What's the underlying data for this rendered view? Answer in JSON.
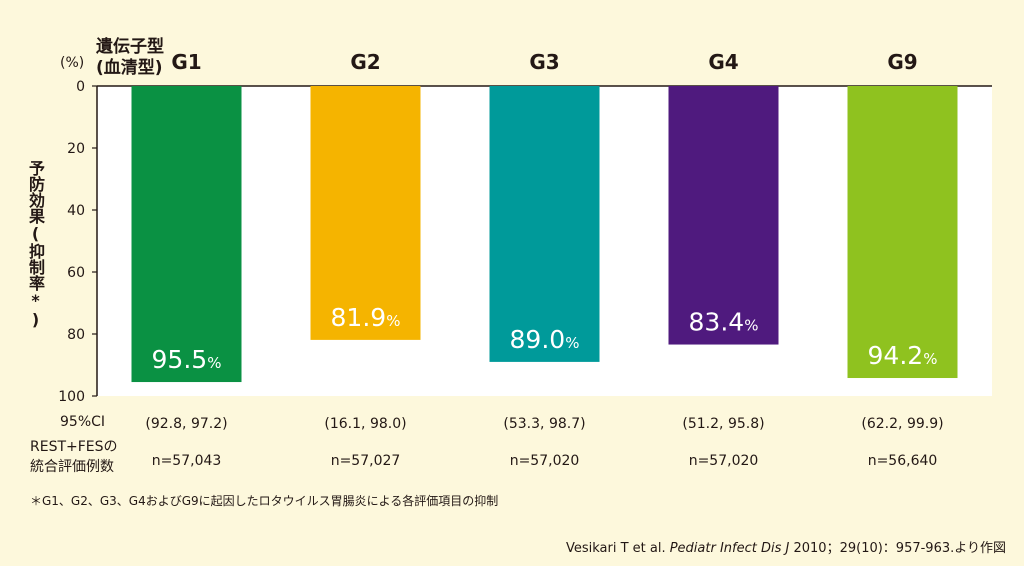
{
  "chart_data": {
    "type": "bar",
    "title": "",
    "unit_label": "(%)",
    "x_header": [
      "遺伝子型",
      "(血清型)"
    ],
    "ylabel": "予防効果(抑制率*)",
    "ylim": [
      0,
      100
    ],
    "y_ticks": [
      0,
      20,
      40,
      60,
      80,
      100
    ],
    "y_axis_inverted": true,
    "grid": false,
    "categories": [
      "G1",
      "G2",
      "G3",
      "G4",
      "G9"
    ],
    "values": [
      95.5,
      81.9,
      89.0,
      83.4,
      94.2
    ],
    "value_labels": [
      "95.5",
      "81.9",
      "89.0",
      "83.4",
      "94.2"
    ],
    "value_suffix": "%",
    "colors": [
      "#0a9143",
      "#f5b400",
      "#009a9a",
      "#4f1a7e",
      "#8fc21f"
    ],
    "plot_background": "#ffffff",
    "ci_label": "95%CI",
    "ci": [
      "(92.8, 97.2)",
      "(16.1, 98.0)",
      "(53.3, 98.7)",
      "(51.2, 95.8)",
      "(62.2, 99.9)"
    ],
    "n_label": [
      "REST+FESの",
      "統合評価例数"
    ],
    "n": [
      "n=57,043",
      "n=57,027",
      "n=57,020",
      "n=57,020",
      "n=56,640"
    ],
    "footnote": "＊G1、G2、G3、G4およびG9に起因したロタウイルス胃腸炎による各評価項目の抑制",
    "source": {
      "authors": "Vesikari T et al. ",
      "journal": "Pediatr Infect Dis J",
      "rest": " 2010；29(10)：957-963.より作図"
    }
  }
}
